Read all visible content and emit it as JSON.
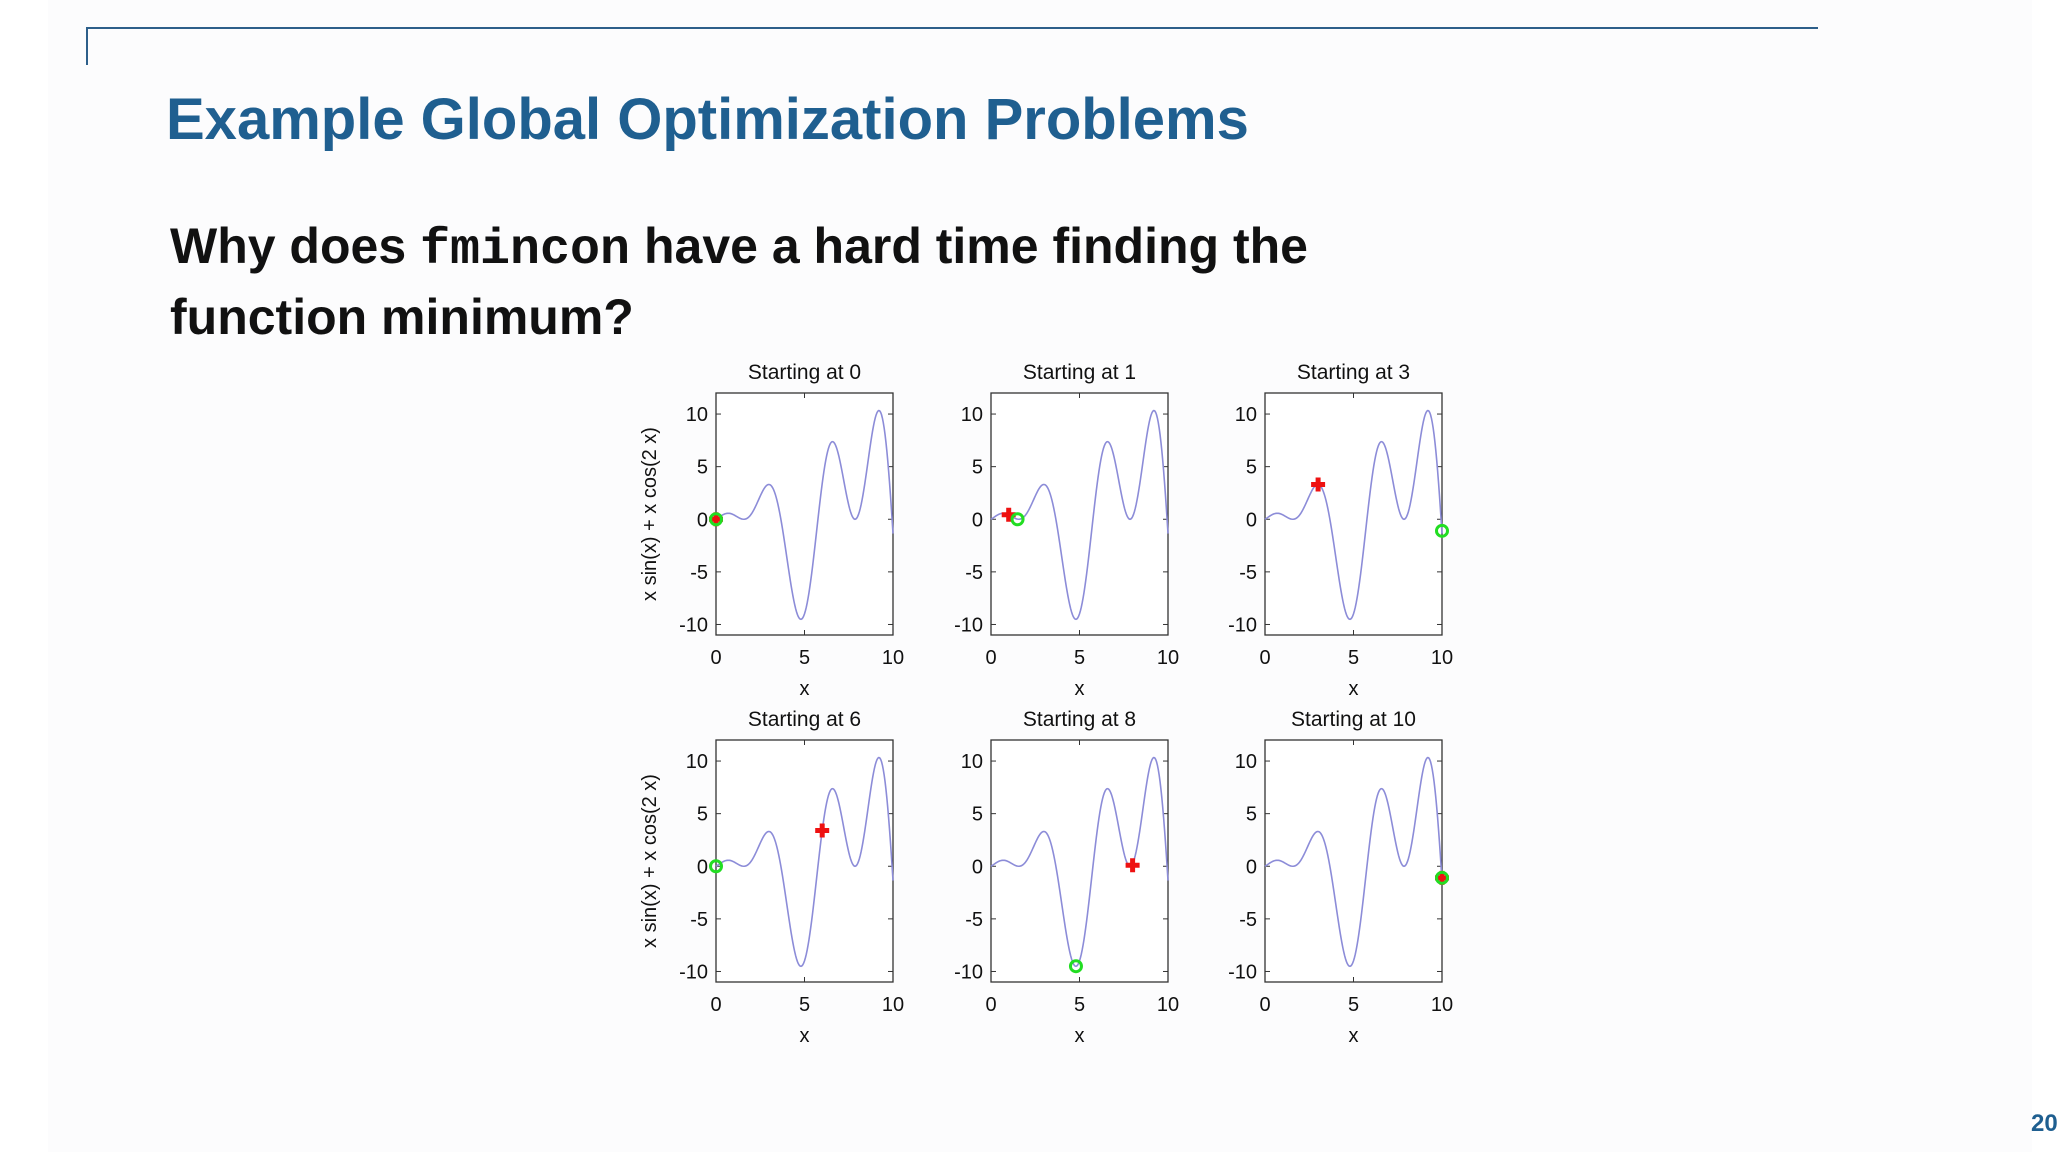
{
  "slide": {
    "title": "Example Global Optimization Problems",
    "question_part1": "Why does ",
    "question_code": "fmincon",
    "question_part2": " have a hard time finding the function minimum?",
    "page_number": "20"
  },
  "colors": {
    "title": "#1f5f90",
    "curve": "#8c8cd8",
    "start_marker": "#ee1111",
    "solution_marker": "#22dd22"
  },
  "chart_data": [
    {
      "type": "line",
      "title": "Starting at 0",
      "xlabel": "x",
      "ylabel": "x sin(x) + x cos(2 x)",
      "xlim": [
        0,
        10
      ],
      "ylim": [
        -11,
        12
      ],
      "xticks": [
        "0",
        "5",
        "10"
      ],
      "yticks": [
        "10",
        "5",
        "0",
        "-5",
        "-10"
      ],
      "function": "x sin(x) + x cos(2 x)",
      "start_point": {
        "x": 0,
        "y": 0
      },
      "solution_point": {
        "x": 0,
        "y": 0
      }
    },
    {
      "type": "line",
      "title": "Starting at 1",
      "xlabel": "x",
      "ylabel": "",
      "xlim": [
        0,
        10
      ],
      "ylim": [
        -11,
        12
      ],
      "xticks": [
        "0",
        "5",
        "10"
      ],
      "yticks": [
        "10",
        "5",
        "0",
        "-5",
        "-10"
      ],
      "function": "x sin(x) + x cos(2 x)",
      "start_point": {
        "x": 1,
        "y": 0.43
      },
      "solution_point": {
        "x": 1.5,
        "y": 0
      }
    },
    {
      "type": "line",
      "title": "Starting at 3",
      "xlabel": "x",
      "ylabel": "",
      "xlim": [
        0,
        10
      ],
      "ylim": [
        -11,
        12
      ],
      "xticks": [
        "0",
        "5",
        "10"
      ],
      "yticks": [
        "10",
        "5",
        "0",
        "-5",
        "-10"
      ],
      "function": "x sin(x) + x cos(2 x)",
      "start_point": {
        "x": 3,
        "y": 3.3
      },
      "solution_point": {
        "x": 10,
        "y": -1.1
      }
    },
    {
      "type": "line",
      "title": "Starting at 6",
      "xlabel": "x",
      "ylabel": "x sin(x) + x cos(2 x)",
      "xlim": [
        0,
        10
      ],
      "ylim": [
        -11,
        12
      ],
      "xticks": [
        "0",
        "5",
        "10"
      ],
      "yticks": [
        "10",
        "5",
        "0",
        "-5",
        "-10"
      ],
      "function": "x sin(x) + x cos(2 x)",
      "start_point": {
        "x": 6,
        "y": 3.4
      },
      "solution_point": {
        "x": 0,
        "y": 0
      }
    },
    {
      "type": "line",
      "title": "Starting at 8",
      "xlabel": "x",
      "ylabel": "",
      "xlim": [
        0,
        10
      ],
      "ylim": [
        -11,
        12
      ],
      "xticks": [
        "0",
        "5",
        "10"
      ],
      "yticks": [
        "10",
        "5",
        "0",
        "-5",
        "-10"
      ],
      "function": "x sin(x) + x cos(2 x)",
      "start_point": {
        "x": 8,
        "y": 0.1
      },
      "solution_point": {
        "x": 4.8,
        "y": -9.5
      }
    },
    {
      "type": "line",
      "title": "Starting at 10",
      "xlabel": "x",
      "ylabel": "",
      "xlim": [
        0,
        10
      ],
      "ylim": [
        -11,
        12
      ],
      "xticks": [
        "0",
        "5",
        "10"
      ],
      "yticks": [
        "10",
        "5",
        "0",
        "-5",
        "-10"
      ],
      "function": "x sin(x) + x cos(2 x)",
      "start_point": {
        "x": 10,
        "y": -1.1
      },
      "solution_point": {
        "x": 10,
        "y": -1.1
      }
    }
  ]
}
